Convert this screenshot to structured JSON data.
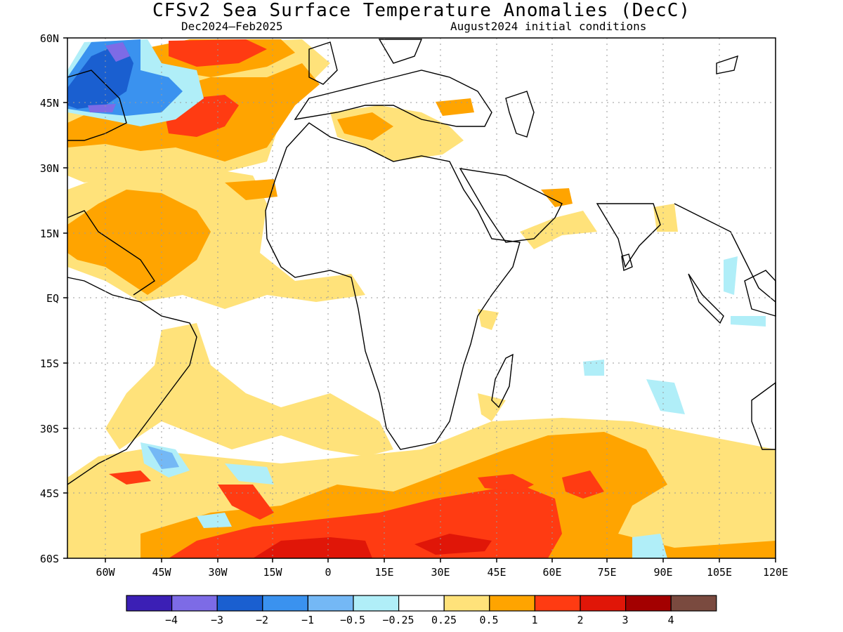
{
  "title": "CFSv2 Sea Surface Temperature Anomalies (DecC)",
  "subtitle_left": "Dec2024–Feb2025",
  "subtitle_right": "August2024 initial conditions",
  "map": {
    "lat_labels": [
      "60N",
      "45N",
      "30N",
      "15N",
      "EQ",
      "15S",
      "30S",
      "45S",
      "60S"
    ],
    "lon_labels": [
      "60W",
      "45W",
      "30W",
      "15W",
      "0",
      "15E",
      "30E",
      "45E",
      "60E",
      "75E",
      "90E",
      "105E",
      "120E"
    ],
    "grid": true
  },
  "colorbar": {
    "colors": [
      "#3b1fb5",
      "#7d6be6",
      "#1a5fd0",
      "#3a92ef",
      "#74b8f5",
      "#b0eef8",
      "#ffffff",
      "#ffe27a",
      "#ffa400",
      "#ff3b12",
      "#e01608",
      "#a30000",
      "#7a4a3f"
    ],
    "labels": [
      "−4",
      "−3",
      "−2",
      "−1",
      "−0.5",
      "−0.25",
      "0.25",
      "0.5",
      "1",
      "2",
      "3",
      "4"
    ]
  },
  "colors": {
    "land_outline": "#000000",
    "light_yellow": "#ffe27a",
    "orange": "#ffa400",
    "red_orange": "#ff3b12",
    "red": "#e01608",
    "dark_red": "#a30000",
    "light_blue": "#b0eef8",
    "mid_blue": "#74b8f5",
    "blue": "#3a92ef",
    "dark_blue": "#1a5fd0",
    "purple": "#7d6be6"
  }
}
